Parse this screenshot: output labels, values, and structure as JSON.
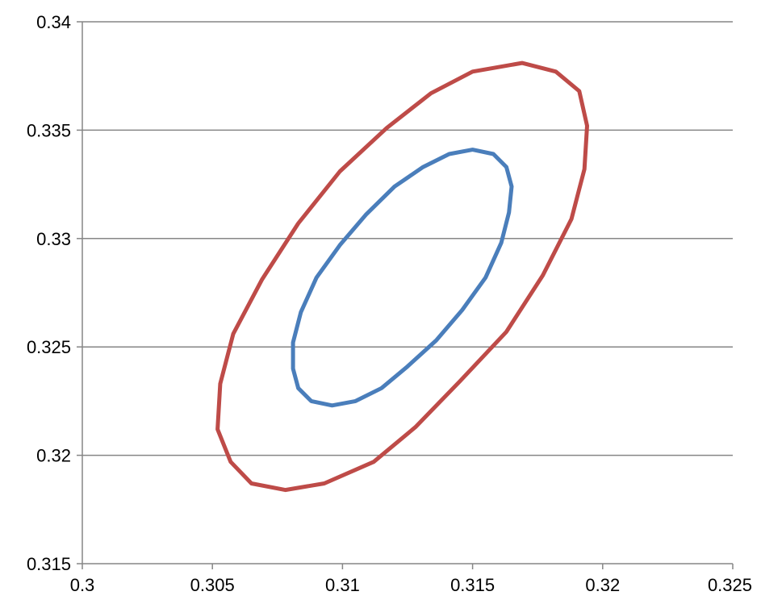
{
  "chart_data": {
    "type": "scatter",
    "title": "",
    "xlabel": "",
    "ylabel": "",
    "xlim": [
      0.3,
      0.325
    ],
    "ylim": [
      0.315,
      0.34
    ],
    "x_ticks": [
      0.3,
      0.305,
      0.31,
      0.315,
      0.32,
      0.325
    ],
    "x_tick_labels": [
      "0.3",
      "0.305",
      "0.31",
      "0.315",
      "0.32",
      "0.325"
    ],
    "y_ticks": [
      0.315,
      0.32,
      0.325,
      0.33,
      0.335,
      0.34
    ],
    "y_tick_labels": [
      "0.315",
      "0.32",
      "0.325",
      "0.33",
      "0.335",
      "0.34"
    ],
    "grid": {
      "horizontal": true,
      "vertical": false
    },
    "legend": "none",
    "colors": {
      "gridline": "#868686",
      "axis": "#868686",
      "text": "#000000"
    },
    "series": [
      {
        "color": "#be4b48",
        "points": [
          [
            0.3169,
            0.3381
          ],
          [
            0.3182,
            0.3377
          ],
          [
            0.3191,
            0.3368
          ],
          [
            0.3194,
            0.3352
          ],
          [
            0.3193,
            0.3332
          ],
          [
            0.3188,
            0.3309
          ],
          [
            0.3177,
            0.3283
          ],
          [
            0.3163,
            0.3257
          ],
          [
            0.3145,
            0.3234
          ],
          [
            0.3128,
            0.3213
          ],
          [
            0.3112,
            0.3197
          ],
          [
            0.3093,
            0.3187
          ],
          [
            0.3078,
            0.3184
          ],
          [
            0.3065,
            0.3187
          ],
          [
            0.3057,
            0.3197
          ],
          [
            0.3052,
            0.3212
          ],
          [
            0.3053,
            0.3233
          ],
          [
            0.3058,
            0.3256
          ],
          [
            0.3069,
            0.3281
          ],
          [
            0.3083,
            0.3307
          ],
          [
            0.3099,
            0.3331
          ],
          [
            0.3117,
            0.3351
          ],
          [
            0.3134,
            0.3367
          ],
          [
            0.315,
            0.3377
          ],
          [
            0.3169,
            0.3381
          ]
        ]
      },
      {
        "color": "#4a7ebb",
        "points": [
          [
            0.315,
            0.3341
          ],
          [
            0.3158,
            0.3339
          ],
          [
            0.3163,
            0.3333
          ],
          [
            0.3165,
            0.3324
          ],
          [
            0.3164,
            0.3312
          ],
          [
            0.3161,
            0.3298
          ],
          [
            0.3155,
            0.3282
          ],
          [
            0.3146,
            0.3267
          ],
          [
            0.3136,
            0.3253
          ],
          [
            0.3125,
            0.3241
          ],
          [
            0.3115,
            0.3231
          ],
          [
            0.3105,
            0.3225
          ],
          [
            0.3096,
            0.3223
          ],
          [
            0.3088,
            0.3225
          ],
          [
            0.3083,
            0.3231
          ],
          [
            0.3081,
            0.324
          ],
          [
            0.3081,
            0.3252
          ],
          [
            0.3084,
            0.3266
          ],
          [
            0.309,
            0.3282
          ],
          [
            0.3099,
            0.3297
          ],
          [
            0.3109,
            0.3311
          ],
          [
            0.312,
            0.3324
          ],
          [
            0.3131,
            0.3333
          ],
          [
            0.3141,
            0.3339
          ],
          [
            0.315,
            0.3341
          ]
        ]
      }
    ]
  }
}
